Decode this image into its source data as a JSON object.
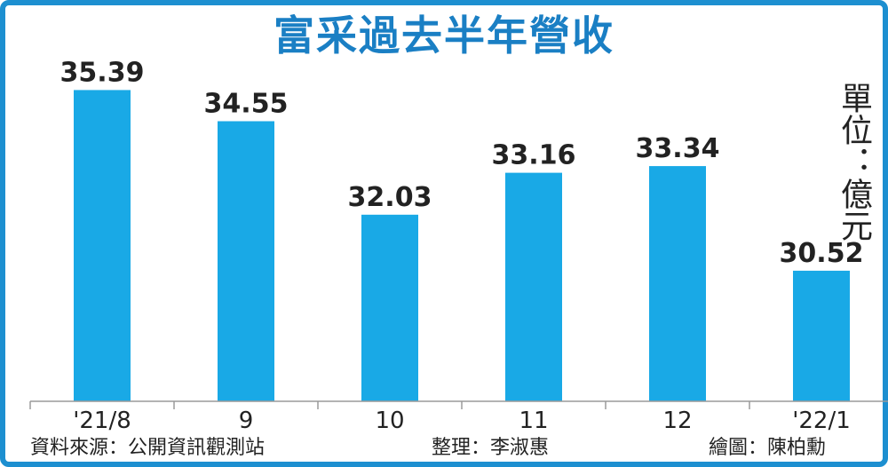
{
  "chart_data": {
    "type": "bar",
    "title": "富采過去半年營收",
    "unit_label": "單位：億元",
    "categories": [
      "'21/8",
      "9",
      "10",
      "11",
      "12",
      "'22/1"
    ],
    "values": [
      35.39,
      34.55,
      32.03,
      33.16,
      33.34,
      30.52
    ],
    "ylim": [
      27.0,
      35.4
    ],
    "grid": false,
    "bar_color": "#19a9e6"
  },
  "footer": {
    "source": "資料來源：公開資訊觀測站",
    "editor": "整理：李淑惠",
    "artist": "繪圖：陳柏勳"
  }
}
